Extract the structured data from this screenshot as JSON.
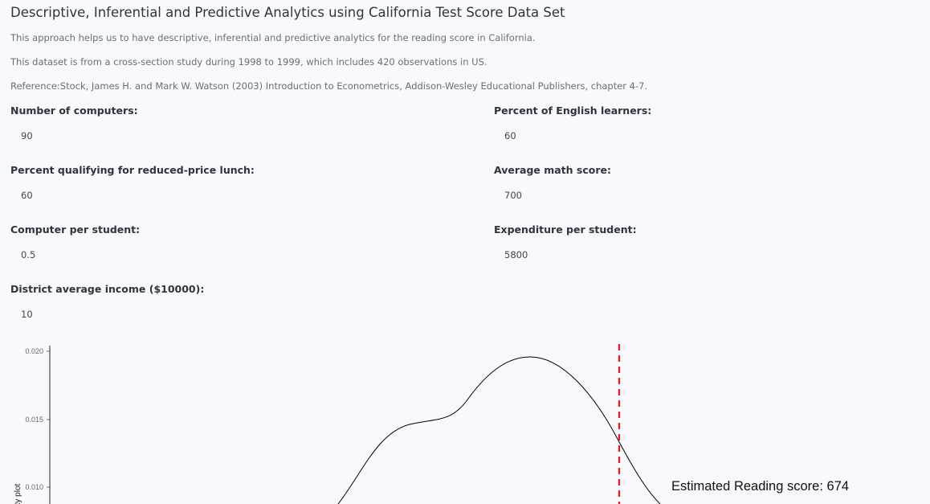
{
  "header": {
    "title": "Descriptive, Inferential and Predictive Analytics using California Test Score Data Set",
    "desc1": "This approach helps us to have descriptive, inferential and predictive analytics for the reading score in California.",
    "desc2": "This dataset is from a cross-section study during 1998 to 1999, which includes 420 observations in US.",
    "desc3": "Reference:Stock, James H. and Mark W. Watson (2003) Introduction to Econometrics, Addison-Wesley Educational Publishers, chapter 4-7."
  },
  "fields": {
    "computers": {
      "label": "Number of computers:",
      "value": "90"
    },
    "english": {
      "label": "Percent of English learners:",
      "value": "60"
    },
    "lunch": {
      "label": "Percent qualifying for reduced-price lunch:",
      "value": "60"
    },
    "math": {
      "label": "Average math score:",
      "value": "700"
    },
    "comp_per_student": {
      "label": "Computer per student:",
      "value": "0.5"
    },
    "expenditure": {
      "label": "Expenditure per student:",
      "value": "5800"
    },
    "income": {
      "label": "District average income ($10000):",
      "value": "10"
    }
  },
  "chart_data": {
    "type": "area",
    "ylabel": "density plot",
    "y_ticks": [
      "0.020",
      "0.015",
      "0.010"
    ],
    "estimate_line_color": "#e31a1c",
    "curve_color": "#000000",
    "annotation": "Estimated Reading score: 674"
  }
}
